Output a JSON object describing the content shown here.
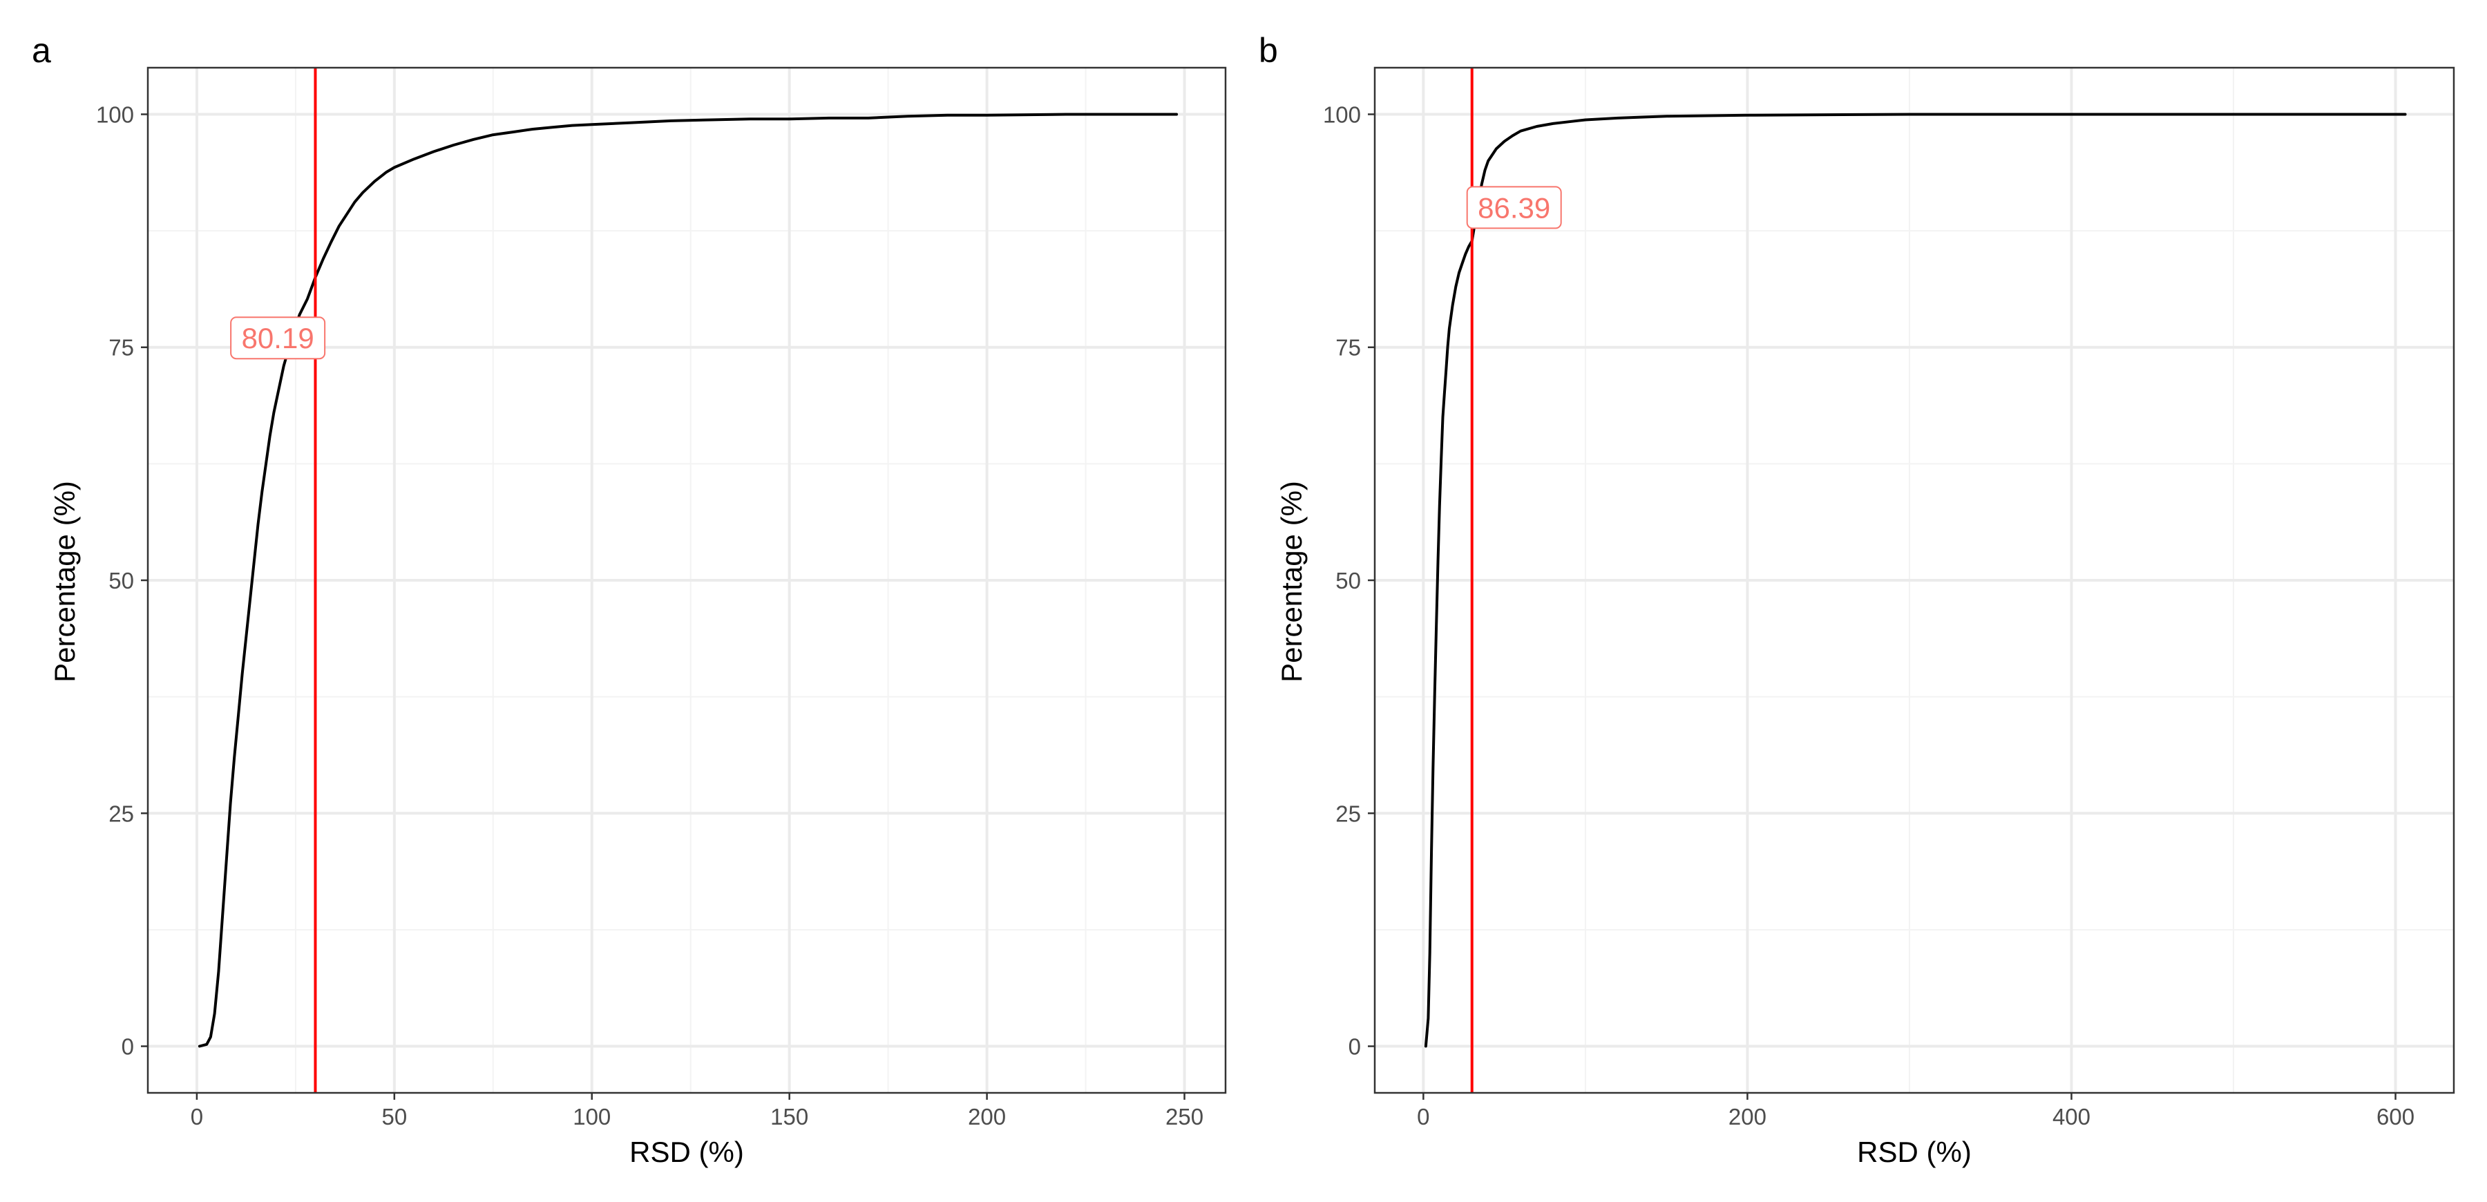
{
  "figure": {
    "panels": [
      "a",
      "b"
    ]
  },
  "chart_data": [
    {
      "panel": "a",
      "type": "line",
      "title": "",
      "xlabel": "RSD (%)",
      "ylabel": "Percentage (%)",
      "xlim": [
        -12.4,
        260.4
      ],
      "ylim": [
        -5,
        105
      ],
      "xticks": [
        0,
        50,
        100,
        150,
        200,
        250
      ],
      "yticks": [
        0,
        25,
        50,
        75,
        100
      ],
      "grid": true,
      "line_color": "#000000",
      "series": [
        {
          "x": [
            0.7,
            2.5,
            3.5,
            4.5,
            5.5,
            6.5,
            7.5,
            8.5,
            9.5,
            10.5,
            11.5,
            12.5,
            13.5,
            14.5,
            15.5,
            16.5,
            17.5,
            18.5,
            19.5,
            20.5,
            22,
            24,
            26,
            28,
            30,
            32,
            34,
            36,
            38,
            40,
            42,
            45,
            48,
            50,
            55,
            60,
            65,
            70,
            75,
            80,
            85,
            90,
            95,
            100,
            110,
            120,
            130,
            140,
            150,
            160,
            170,
            180,
            190,
            200,
            220,
            248
          ],
          "y": [
            0,
            0.2,
            1,
            3.5,
            8,
            14,
            20,
            26,
            31,
            35.5,
            40,
            44,
            48,
            52,
            56,
            59.5,
            62.5,
            65.5,
            68,
            70,
            73,
            76,
            78.5,
            80.2,
            82.5,
            84.5,
            86.3,
            88,
            89.3,
            90.6,
            91.6,
            92.8,
            93.8,
            94.3,
            95.2,
            96,
            96.7,
            97.3,
            97.8,
            98.1,
            98.4,
            98.6,
            98.8,
            98.9,
            99.1,
            99.3,
            99.4,
            99.5,
            99.5,
            99.6,
            99.6,
            99.8,
            99.9,
            99.9,
            100,
            100
          ]
        }
      ],
      "threshold": {
        "x": 30,
        "color": "#ff0000"
      },
      "annotations": [
        {
          "text": "80.19",
          "x": 20.5,
          "y": 76,
          "color": "#f8766d"
        }
      ]
    },
    {
      "panel": "b",
      "type": "line",
      "title": "",
      "xlabel": "RSD (%)",
      "ylabel": "Percentage (%)",
      "xlim": [
        -30,
        636
      ],
      "ylim": [
        -5,
        105
      ],
      "xticks": [
        0,
        200,
        400,
        600
      ],
      "yticks": [
        0,
        25,
        50,
        75,
        100
      ],
      "grid": true,
      "line_color": "#000000",
      "series": [
        {
          "x": [
            1.5,
            3,
            4,
            5,
            6,
            7,
            8,
            9,
            10,
            11,
            12,
            13,
            14,
            15,
            16,
            18,
            20,
            22,
            24,
            26,
            28,
            30,
            32,
            34,
            36,
            38,
            40,
            45,
            50,
            55,
            60,
            70,
            80,
            90,
            100,
            120,
            150,
            200,
            300,
            400,
            500,
            606
          ],
          "y": [
            0,
            3,
            10,
            21,
            30,
            38,
            45,
            52,
            58,
            63,
            67.5,
            70,
            72.5,
            75,
            77,
            79.5,
            81.5,
            83,
            84,
            85,
            85.8,
            86.4,
            88.5,
            90.5,
            92.5,
            94,
            95,
            96.3,
            97.1,
            97.7,
            98.2,
            98.7,
            99,
            99.2,
            99.4,
            99.6,
            99.8,
            99.9,
            100,
            100,
            100,
            100
          ]
        }
      ],
      "threshold": {
        "x": 30,
        "color": "#ff0000"
      },
      "annotations": [
        {
          "text": "86.39",
          "x": 56,
          "y": 90,
          "color": "#f8766d"
        }
      ]
    }
  ]
}
